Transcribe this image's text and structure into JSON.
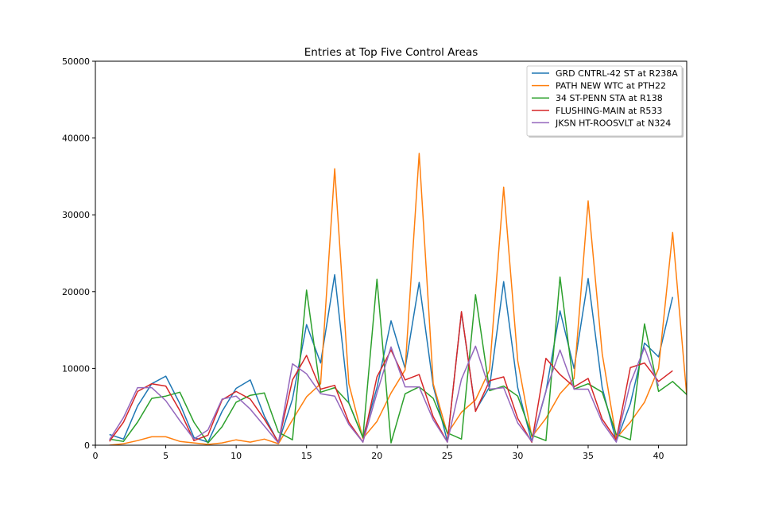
{
  "chart_data": {
    "type": "line",
    "title": "Entries at Top Five Control Areas",
    "xlabel": "",
    "ylabel": "",
    "xlim": [
      0,
      42
    ],
    "ylim": [
      0,
      50000
    ],
    "xticks": [
      0,
      5,
      10,
      15,
      20,
      25,
      30,
      35,
      40
    ],
    "yticks": [
      0,
      10000,
      20000,
      30000,
      40000,
      50000
    ],
    "xtick_labels": [
      "0",
      "5",
      "10",
      "15",
      "20",
      "25",
      "30",
      "35",
      "40"
    ],
    "ytick_labels": [
      "0",
      "10000",
      "20000",
      "30000",
      "40000",
      "50000"
    ],
    "legend_position": "top-right",
    "grid": false,
    "x": [
      1,
      2,
      3,
      4,
      5,
      6,
      7,
      8,
      9,
      10,
      11,
      12,
      13,
      14,
      15,
      16,
      17,
      18,
      19,
      20,
      21,
      22,
      23,
      24,
      25,
      26,
      27,
      28,
      29,
      30,
      31,
      32,
      33,
      34,
      35,
      36,
      37,
      38,
      39,
      40,
      41,
      42
    ],
    "series": [
      {
        "name": "GRD CNTRL-42 ST at R238A",
        "color": "#1f77b4",
        "values": [
          1400,
          800,
          5100,
          8000,
          9000,
          5400,
          1000,
          400,
          4400,
          7400,
          8500,
          3800,
          300,
          6000,
          15700,
          10700,
          22200,
          5500,
          1000,
          7500,
          16200,
          10000,
          21200,
          7700,
          500,
          17300,
          4500,
          7600,
          21300,
          7500,
          400,
          7000,
          17500,
          10000,
          21700,
          7500,
          500,
          5400,
          13300,
          11500,
          19300,
          null
        ]
      },
      {
        "name": "PATH NEW WTC at PTH22",
        "color": "#ff7f0e",
        "values": [
          0,
          200,
          600,
          1100,
          1100,
          500,
          300,
          100,
          300,
          700,
          400,
          800,
          200,
          3300,
          6300,
          8000,
          36000,
          8000,
          900,
          3100,
          6800,
          9800,
          38000,
          8000,
          1500,
          4300,
          5900,
          9800,
          33600,
          11000,
          1100,
          3500,
          6700,
          8700,
          31800,
          11900,
          900,
          3000,
          5600,
          10000,
          27700,
          6500
        ]
      },
      {
        "name": "34 ST-PENN STA at R138",
        "color": "#2ca02c",
        "values": [
          800,
          500,
          3000,
          6100,
          6400,
          6900,
          3000,
          300,
          2400,
          5600,
          6500,
          6800,
          1700,
          700,
          20200,
          6900,
          7500,
          5500,
          1000,
          21600,
          300,
          6700,
          7600,
          6100,
          1600,
          800,
          19600,
          7100,
          7700,
          6400,
          1300,
          600,
          21900,
          7300,
          8000,
          6900,
          1400,
          700,
          15800,
          7000,
          8300,
          6600
        ]
      },
      {
        "name": "FLUSHING-MAIN at R533",
        "color": "#d62728",
        "values": [
          500,
          3000,
          7000,
          8000,
          7700,
          4500,
          600,
          1300,
          5900,
          7000,
          6000,
          3400,
          400,
          8500,
          11700,
          7300,
          7800,
          3000,
          400,
          8900,
          12400,
          8500,
          9200,
          3700,
          400,
          17400,
          4400,
          8400,
          8900,
          3500,
          400,
          11300,
          9200,
          7600,
          8700,
          3400,
          700,
          10100,
          10700,
          8300,
          9700,
          null
        ]
      },
      {
        "name": "JKSN HT-ROOSVLT at N324",
        "color": "#9467bd",
        "values": [
          700,
          3600,
          7500,
          7500,
          5800,
          3200,
          800,
          2000,
          6000,
          6400,
          4700,
          2500,
          300,
          10600,
          9300,
          6700,
          6400,
          2700,
          400,
          6800,
          12800,
          7600,
          7600,
          3300,
          400,
          8600,
          12900,
          7300,
          7500,
          2900,
          500,
          7100,
          12400,
          7300,
          7300,
          3000,
          400,
          8100,
          12700,
          7700,
          null,
          null
        ]
      }
    ]
  }
}
